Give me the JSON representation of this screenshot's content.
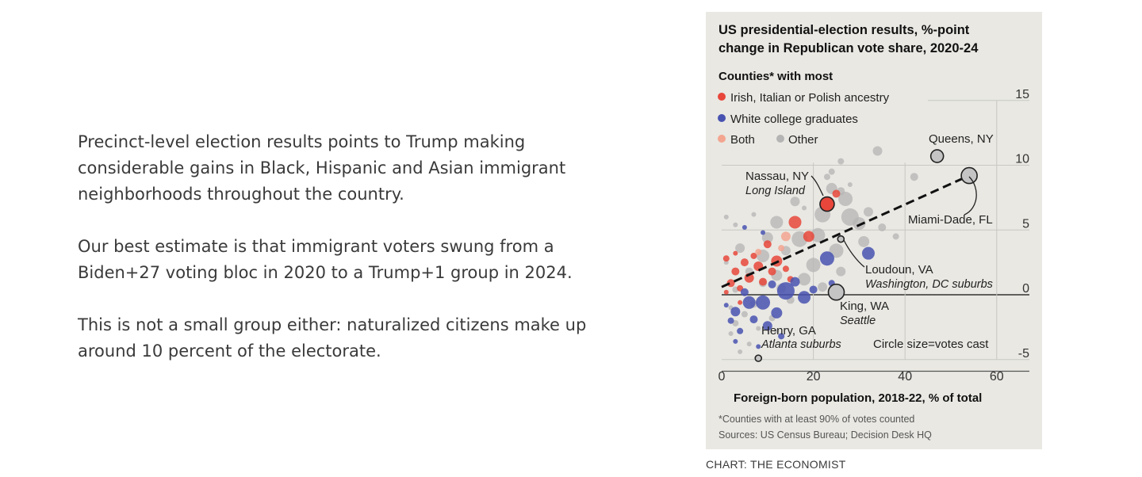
{
  "article": {
    "paragraphs": [
      "Precinct-level election results points to Trump making considerable gains in Black, Hispanic and Asian immigrant neighborhoods throughout the country.",
      "Our best estimate is that immigrant voters swung from a Biden+27 voting bloc in 2020 to a Trump+1 group in 2024.",
      "This is not a small group either: naturalized citizens make up around 10 percent of the electorate."
    ]
  },
  "chart_credit": "CHART: THE ECONOMIST",
  "colors": {
    "panel_bg": "#e9e8e3",
    "irish_italian_polish": "#e8463a",
    "white_college": "#4852b0",
    "both": "#f3a590",
    "other": "#b4b4b4",
    "labelled_county": "#c4c4c4",
    "text": "#3a3a3a"
  },
  "chart_data": {
    "type": "scatter",
    "title_line1": "US presidential-election results, %-point",
    "title_line2": "change in Republican vote share, 2020-24",
    "legend_title": "Counties* with most",
    "legend": [
      {
        "key": "irish",
        "label": "Irish, Italian or Polish ancestry"
      },
      {
        "key": "college",
        "label": "White college graduates"
      },
      {
        "key": "both",
        "label": "Both"
      },
      {
        "key": "other",
        "label": "Other"
      }
    ],
    "legend_placement": "top-left",
    "xlabel": "Foreign-born population, 2018-22, % of total",
    "ylabel": "",
    "xlim": [
      0,
      62
    ],
    "ylim": [
      -6,
      15
    ],
    "x_ticks": [
      0,
      20,
      40,
      60
    ],
    "y_ticks": [
      15,
      10,
      5,
      0,
      -5
    ],
    "grid": true,
    "size_note": "Circle size=votes cast",
    "footnote": "*Counties with at least 90% of votes counted",
    "sources": "Sources: US Census Bureau; Decision Desk HQ",
    "trendline": {
      "style": "dashed",
      "from": [
        0,
        0.6
      ],
      "to": [
        54,
        9.2
      ]
    },
    "highlighted": [
      {
        "name": "Queens, NY",
        "sub": "",
        "x": 47,
        "y": 10.7,
        "r": 8
      },
      {
        "name": "Miami-Dade, FL",
        "sub": "",
        "x": 54,
        "y": 9.2,
        "r": 10
      },
      {
        "name": "Nassau, NY",
        "sub": "Long Island",
        "x": 23,
        "y": 7.0,
        "r": 9,
        "group": "irish"
      },
      {
        "name": "Loudoun, VA",
        "sub": "Washington, DC suburbs",
        "x": 26,
        "y": 4.3,
        "r": 4
      },
      {
        "name": "King, WA",
        "sub": "Seattle",
        "x": 25,
        "y": 0.2,
        "r": 10
      },
      {
        "name": "Henry, GA",
        "sub": "Atlanta suburbs",
        "x": 8,
        "y": -4.9,
        "r": 4
      }
    ],
    "points": [
      {
        "g": "other",
        "x": 34,
        "y": 11.1,
        "r": 6
      },
      {
        "g": "other",
        "x": 42,
        "y": 9.1,
        "r": 5
      },
      {
        "g": "other",
        "x": 26,
        "y": 10.3,
        "r": 4
      },
      {
        "g": "other",
        "x": 24,
        "y": 9.5,
        "r": 4
      },
      {
        "g": "other",
        "x": 23,
        "y": 9.1,
        "r": 4
      },
      {
        "g": "other",
        "x": 26,
        "y": 8.0,
        "r": 5
      },
      {
        "g": "other",
        "x": 24,
        "y": 8.2,
        "r": 7
      },
      {
        "g": "other",
        "x": 27,
        "y": 7.4,
        "r": 9
      },
      {
        "g": "other",
        "x": 22,
        "y": 6.2,
        "r": 10
      },
      {
        "g": "other",
        "x": 16,
        "y": 7.2,
        "r": 6
      },
      {
        "g": "other",
        "x": 28,
        "y": 6.0,
        "r": 11
      },
      {
        "g": "other",
        "x": 30,
        "y": 5.5,
        "r": 8
      },
      {
        "g": "other",
        "x": 32,
        "y": 6.4,
        "r": 6
      },
      {
        "g": "other",
        "x": 35,
        "y": 5.2,
        "r": 5
      },
      {
        "g": "other",
        "x": 31,
        "y": 4.1,
        "r": 7
      },
      {
        "g": "other",
        "x": 21,
        "y": 4.6,
        "r": 9
      },
      {
        "g": "other",
        "x": 17,
        "y": 4.3,
        "r": 10
      },
      {
        "g": "other",
        "x": 12,
        "y": 5.6,
        "r": 8
      },
      {
        "g": "other",
        "x": 25,
        "y": 3.4,
        "r": 9
      },
      {
        "g": "other",
        "x": 10,
        "y": 4.4,
        "r": 7
      },
      {
        "g": "other",
        "x": 9,
        "y": 3.0,
        "r": 8
      },
      {
        "g": "other",
        "x": 14,
        "y": 3.4,
        "r": 6
      },
      {
        "g": "other",
        "x": 4,
        "y": 3.6,
        "r": 6
      },
      {
        "g": "other",
        "x": 20,
        "y": 2.3,
        "r": 9
      },
      {
        "g": "other",
        "x": 26,
        "y": 1.8,
        "r": 6
      },
      {
        "g": "other",
        "x": 18,
        "y": 1.2,
        "r": 8
      },
      {
        "g": "other",
        "x": 12,
        "y": 1.5,
        "r": 7
      },
      {
        "g": "other",
        "x": 6,
        "y": 1.8,
        "r": 5
      },
      {
        "g": "other",
        "x": 13,
        "y": 0.5,
        "r": 6
      },
      {
        "g": "other",
        "x": 9,
        "y": 0.9,
        "r": 5
      },
      {
        "g": "other",
        "x": 22,
        "y": 0.6,
        "r": 6
      },
      {
        "g": "other",
        "x": 3,
        "y": 0.4,
        "r": 4
      },
      {
        "g": "other",
        "x": 15,
        "y": -0.4,
        "r": 5
      },
      {
        "g": "other",
        "x": 7,
        "y": -0.7,
        "r": 5
      },
      {
        "g": "other",
        "x": 5,
        "y": -1.5,
        "r": 4
      },
      {
        "g": "other",
        "x": 11,
        "y": -1.8,
        "r": 4
      },
      {
        "g": "other",
        "x": 3,
        "y": -2.2,
        "r": 4
      },
      {
        "g": "other",
        "x": 8,
        "y": -2.6,
        "r": 3
      },
      {
        "g": "other",
        "x": 2,
        "y": -3.0,
        "r": 3
      },
      {
        "g": "other",
        "x": 6,
        "y": -3.8,
        "r": 3
      },
      {
        "g": "other",
        "x": 4,
        "y": -4.4,
        "r": 3
      },
      {
        "g": "other",
        "x": 12,
        "y": -2.8,
        "r": 3
      },
      {
        "g": "other",
        "x": 2,
        "y": -1.0,
        "r": 3
      },
      {
        "g": "other",
        "x": 1,
        "y": 2.5,
        "r": 3
      },
      {
        "g": "other",
        "x": 3,
        "y": 5.4,
        "r": 3
      },
      {
        "g": "other",
        "x": 7,
        "y": 6.2,
        "r": 3
      },
      {
        "g": "other",
        "x": 1,
        "y": 6.0,
        "r": 3
      },
      {
        "g": "other",
        "x": 18,
        "y": 6.7,
        "r": 3
      },
      {
        "g": "other",
        "x": 28,
        "y": 8.5,
        "r": 3
      },
      {
        "g": "other",
        "x": 38,
        "y": 4.5,
        "r": 4
      },
      {
        "g": "irish",
        "x": 16,
        "y": 5.6,
        "r": 8
      },
      {
        "g": "irish",
        "x": 19,
        "y": 4.5,
        "r": 7
      },
      {
        "g": "irish",
        "x": 25,
        "y": 7.8,
        "r": 5
      },
      {
        "g": "irish",
        "x": 10,
        "y": 3.9,
        "r": 5
      },
      {
        "g": "irish",
        "x": 12,
        "y": 2.6,
        "r": 7
      },
      {
        "g": "irish",
        "x": 8,
        "y": 2.2,
        "r": 6
      },
      {
        "g": "irish",
        "x": 5,
        "y": 2.5,
        "r": 5
      },
      {
        "g": "irish",
        "x": 3,
        "y": 1.8,
        "r": 5
      },
      {
        "g": "irish",
        "x": 6,
        "y": 1.3,
        "r": 6
      },
      {
        "g": "irish",
        "x": 2,
        "y": 0.9,
        "r": 5
      },
      {
        "g": "irish",
        "x": 4,
        "y": 0.5,
        "r": 4
      },
      {
        "g": "irish",
        "x": 9,
        "y": 1.0,
        "r": 5
      },
      {
        "g": "irish",
        "x": 11,
        "y": 1.8,
        "r": 5
      },
      {
        "g": "irish",
        "x": 1,
        "y": 2.8,
        "r": 4
      },
      {
        "g": "irish",
        "x": 7,
        "y": 3.0,
        "r": 4
      },
      {
        "g": "irish",
        "x": 14,
        "y": 2.0,
        "r": 4
      },
      {
        "g": "irish",
        "x": 3,
        "y": 3.2,
        "r": 3
      },
      {
        "g": "irish",
        "x": 15,
        "y": 1.2,
        "r": 4
      },
      {
        "g": "irish",
        "x": 1,
        "y": 0.2,
        "r": 3
      },
      {
        "g": "irish",
        "x": 4,
        "y": -0.6,
        "r": 3
      },
      {
        "g": "both",
        "x": 14,
        "y": 4.5,
        "r": 6
      },
      {
        "g": "both",
        "x": 13,
        "y": 3.6,
        "r": 4
      },
      {
        "g": "both",
        "x": 8,
        "y": 3.3,
        "r": 4
      },
      {
        "g": "college",
        "x": 32,
        "y": 3.2,
        "r": 8
      },
      {
        "g": "college",
        "x": 23,
        "y": 2.8,
        "r": 9
      },
      {
        "g": "college",
        "x": 14,
        "y": 0.3,
        "r": 11
      },
      {
        "g": "college",
        "x": 18,
        "y": -0.2,
        "r": 8
      },
      {
        "g": "college",
        "x": 9,
        "y": -0.6,
        "r": 9
      },
      {
        "g": "college",
        "x": 6,
        "y": -0.6,
        "r": 8
      },
      {
        "g": "college",
        "x": 12,
        "y": -1.4,
        "r": 7
      },
      {
        "g": "college",
        "x": 3,
        "y": -1.3,
        "r": 6
      },
      {
        "g": "college",
        "x": 10,
        "y": -2.4,
        "r": 6
      },
      {
        "g": "college",
        "x": 7,
        "y": -1.9,
        "r": 5
      },
      {
        "g": "college",
        "x": 2,
        "y": -2.0,
        "r": 4
      },
      {
        "g": "college",
        "x": 4,
        "y": -2.8,
        "r": 4
      },
      {
        "g": "college",
        "x": 11,
        "y": 0.8,
        "r": 5
      },
      {
        "g": "college",
        "x": 16,
        "y": 1.0,
        "r": 6
      },
      {
        "g": "college",
        "x": 20,
        "y": 0.4,
        "r": 5
      },
      {
        "g": "college",
        "x": 5,
        "y": 0.2,
        "r": 5
      },
      {
        "g": "college",
        "x": 13,
        "y": -3.2,
        "r": 4
      },
      {
        "g": "college",
        "x": 3,
        "y": -3.6,
        "r": 3
      },
      {
        "g": "college",
        "x": 8,
        "y": -4.0,
        "r": 3
      },
      {
        "g": "college",
        "x": 1,
        "y": -0.8,
        "r": 3
      },
      {
        "g": "college",
        "x": 24,
        "y": 0.9,
        "r": 4
      },
      {
        "g": "college",
        "x": 5,
        "y": 5.2,
        "r": 3
      },
      {
        "g": "college",
        "x": 9,
        "y": 4.8,
        "r": 3
      }
    ]
  }
}
